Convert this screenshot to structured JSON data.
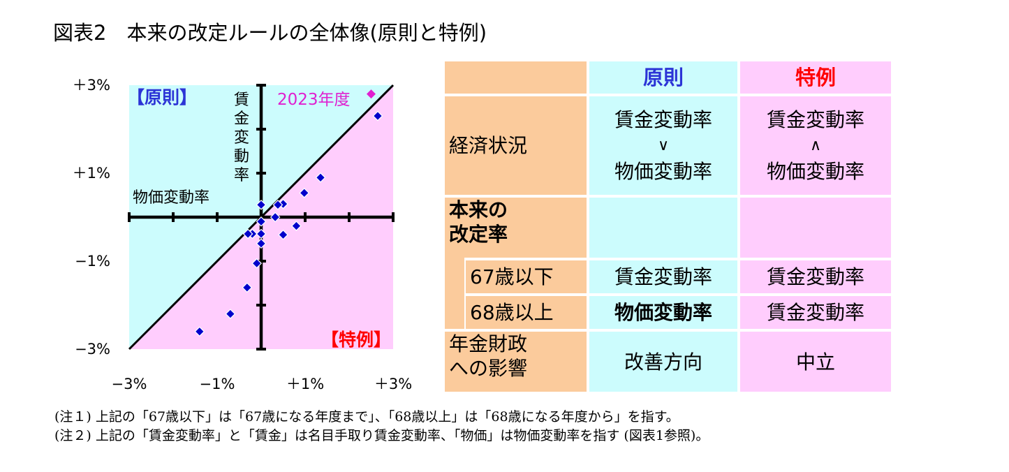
{
  "title": "図表2　本来の改定ルールの全体像(原則と特例)",
  "chart_data": {
    "type": "scatter",
    "xlim": [
      -3,
      3
    ],
    "ylim": [
      -3,
      3
    ],
    "x_ticks": [
      "−3%",
      "−1%",
      "＋1%",
      "＋3%"
    ],
    "y_ticks": [
      "＋3%",
      "＋1%",
      "−1%",
      "−3%"
    ],
    "xlabel": "物価変動率",
    "ylabel": [
      "賃",
      "金",
      "変",
      "動",
      "率"
    ],
    "region_upper_label": "【原則】",
    "region_lower_label": "【特例】",
    "highlight_label": "2023年度",
    "upper_color": "#ccfcfd",
    "lower_color": "#ffcdfd",
    "point_color": "#0000cc",
    "highlight_color": "#e020d0",
    "highlight_point": {
      "x": 2.5,
      "y": 2.8
    },
    "points": [
      {
        "x": 2.65,
        "y": 2.3
      },
      {
        "x": 1.35,
        "y": 0.9
      },
      {
        "x": 0.98,
        "y": 0.55
      },
      {
        "x": 0.5,
        "y": 0.3
      },
      {
        "x": 0.38,
        "y": 0.28
      },
      {
        "x": 0.0,
        "y": 0.28
      },
      {
        "x": 0.32,
        "y": 0.0
      },
      {
        "x": 0.0,
        "y": -0.1
      },
      {
        "x": 0.8,
        "y": -0.2
      },
      {
        "x": 0.5,
        "y": -0.4
      },
      {
        "x": -0.2,
        "y": -0.38
      },
      {
        "x": -0.3,
        "y": -0.38
      },
      {
        "x": 0.0,
        "y": -0.38
      },
      {
        "x": 0.0,
        "y": -0.6
      },
      {
        "x": -0.1,
        "y": -1.05
      },
      {
        "x": -0.32,
        "y": -1.6
      },
      {
        "x": -0.7,
        "y": -2.2
      },
      {
        "x": -1.4,
        "y": -2.6
      }
    ]
  },
  "table": {
    "header": {
      "principle": "原則",
      "exception": "特例"
    },
    "economy": {
      "label": "経済状況",
      "principle": [
        "賃金変動率",
        "∨",
        "物価変動率"
      ],
      "exception": [
        "賃金変動率",
        "∧",
        "物価変動率"
      ]
    },
    "revision": {
      "label_line1": "本来の",
      "label_line2": "改定率"
    },
    "under67": {
      "label": "67歳以下",
      "principle": "賃金変動率",
      "exception": "賃金変動率"
    },
    "over68": {
      "label": "68歳以上",
      "principle": "物価変動率",
      "exception": "賃金変動率"
    },
    "finance": {
      "label_line1": "年金財政",
      "label_line2": "への影響",
      "principle": "改善方向",
      "exception": "中立"
    }
  },
  "notes": [
    "(注１) 上記の「67歳以下」は「67歳になる年度まで」、「68歳以上」は「68歳になる年度から」を指す。",
    "(注２) 上記の「賃金変動率」と「賃金」は名目手取り賃金変動率、「物価」は物価変動率を指す (図表1参照)。"
  ]
}
